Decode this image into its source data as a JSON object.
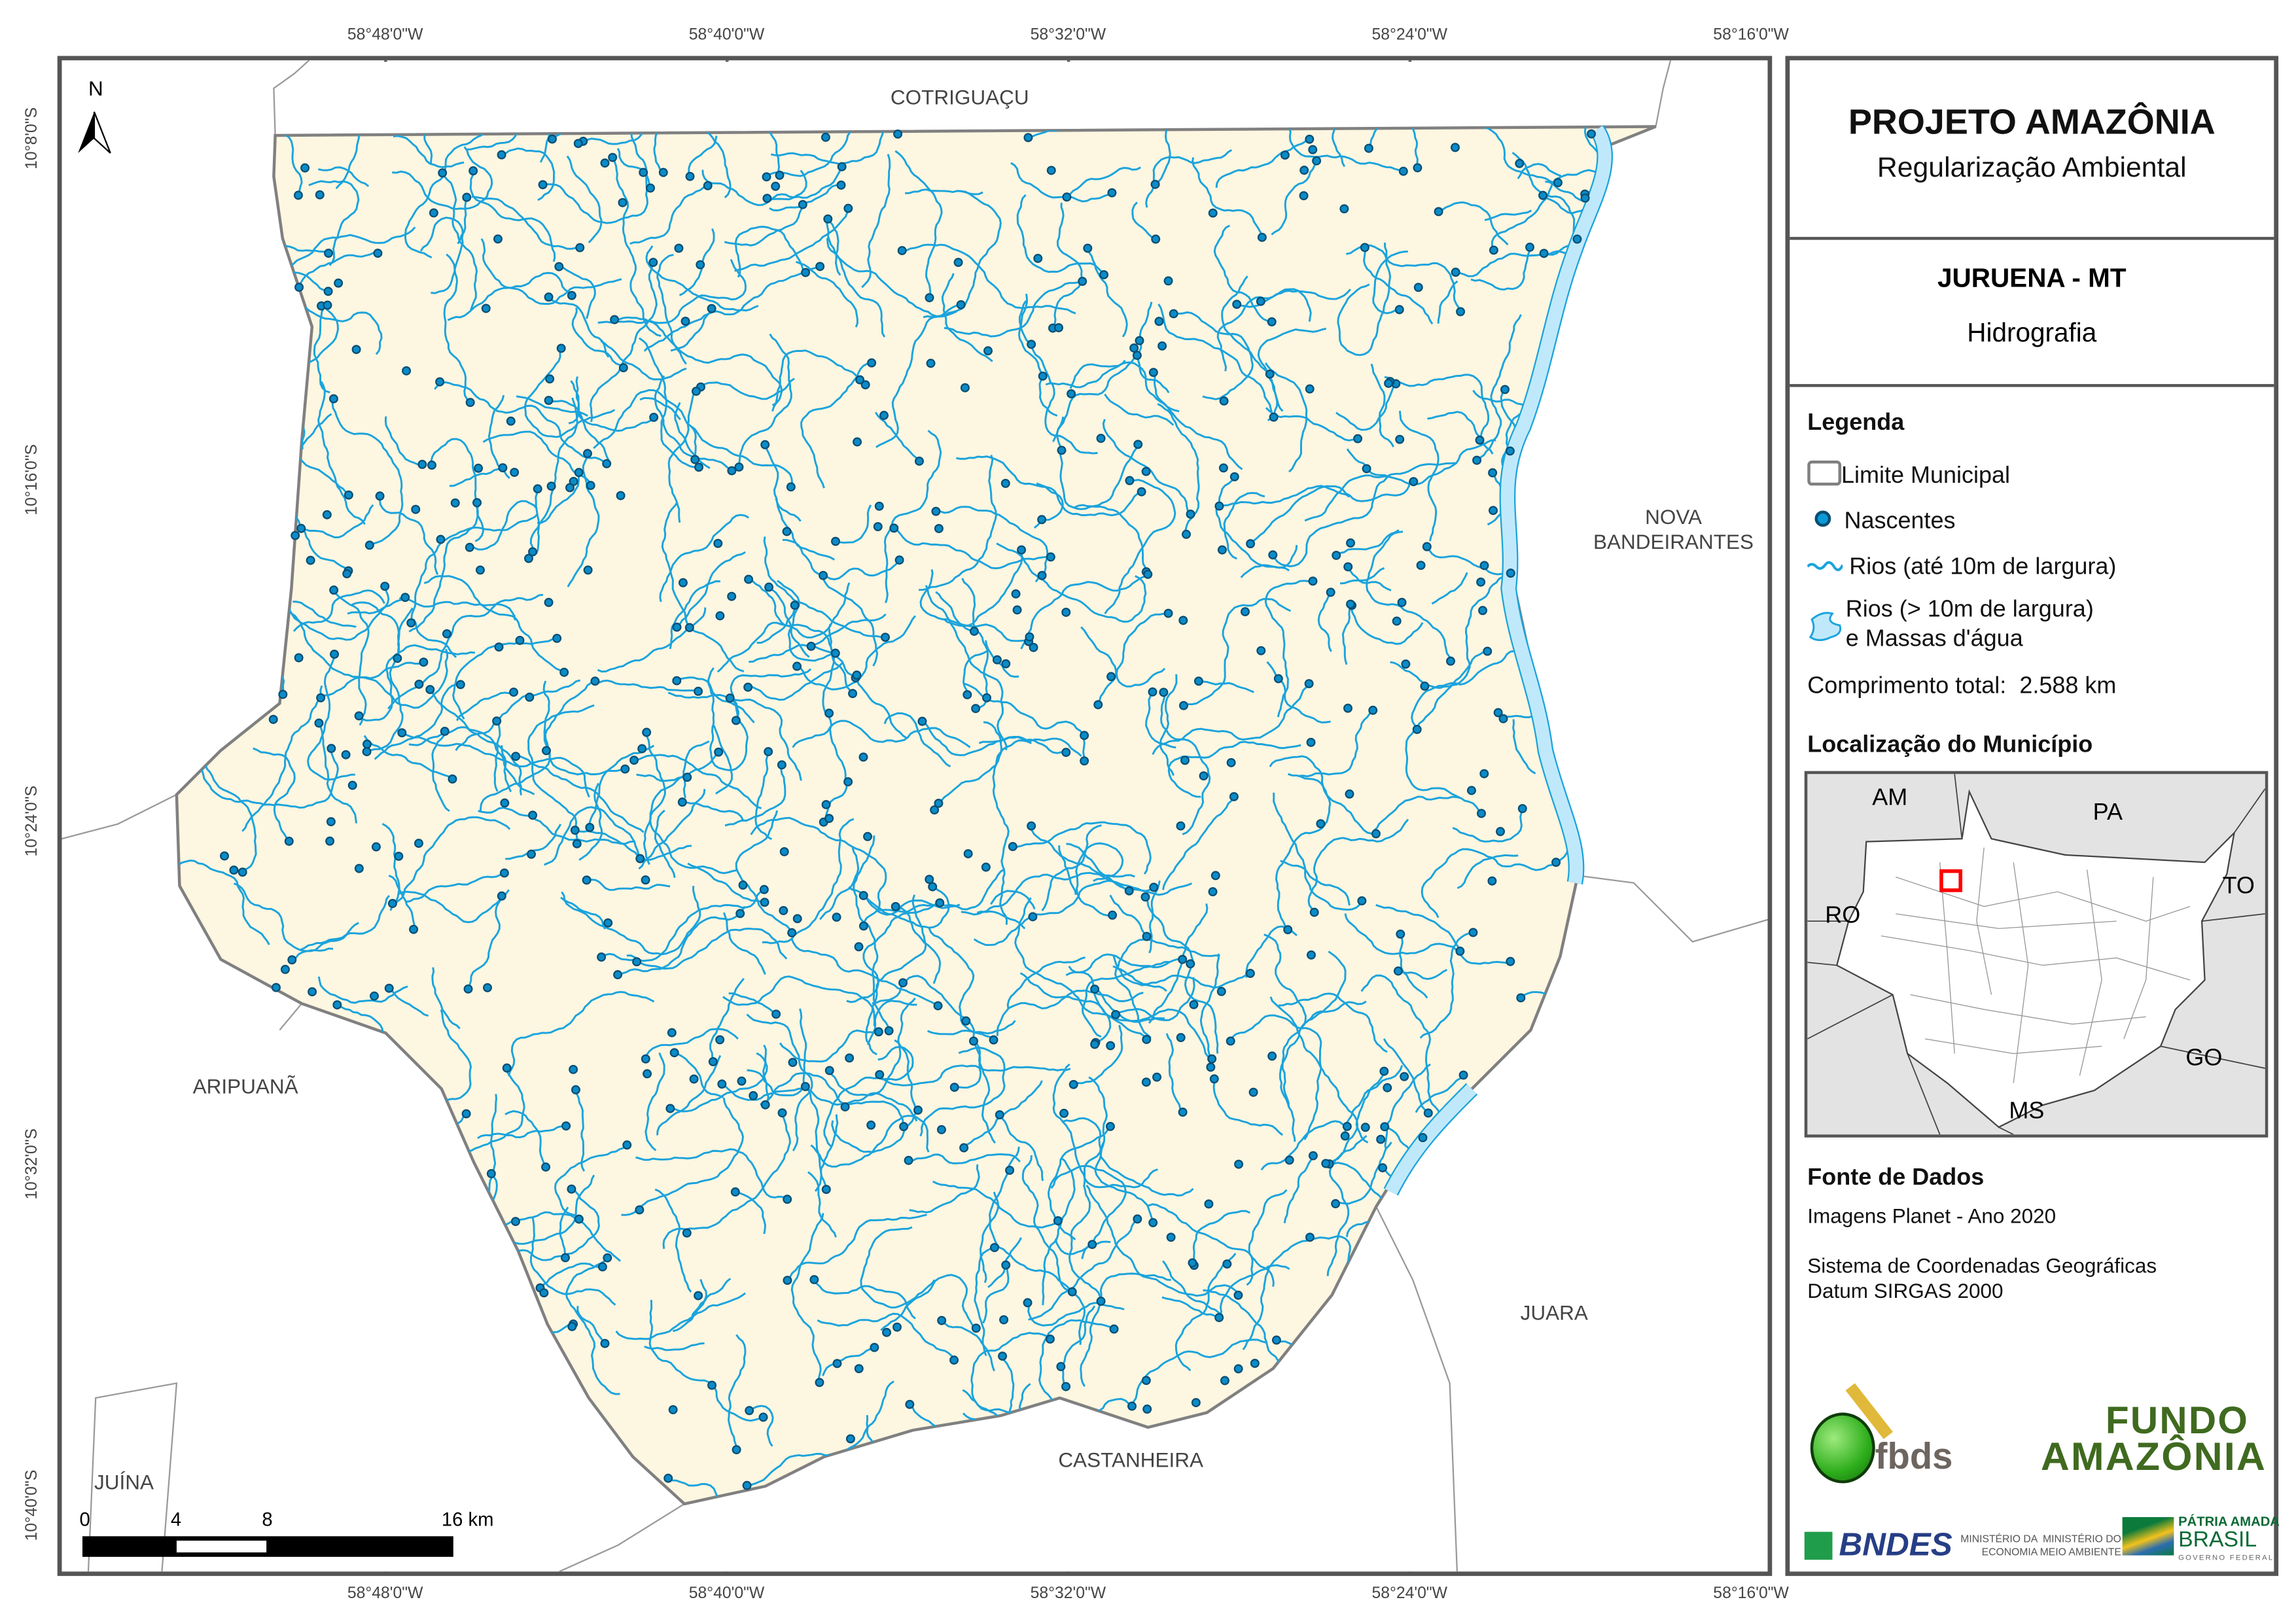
{
  "header": {
    "title": "PROJETO AMAZÔNIA",
    "subtitle": "Regularização Ambiental"
  },
  "municipality": {
    "name": "JURUENA - MT",
    "theme": "Hidrografia"
  },
  "legend": {
    "title": "Legenda",
    "items": [
      {
        "label": "Limite Municipal",
        "icon": "municipal-boundary-icon"
      },
      {
        "label": "Nascentes",
        "icon": "spring-point-icon"
      },
      {
        "label": "Rios (até 10m de largura)",
        "icon": "small-river-line-icon"
      },
      {
        "label": "Rios (> 10m de largura)",
        "label2": "e Massas d'água",
        "icon": "water-body-icon"
      }
    ],
    "total_length_label": "Comprimento total:",
    "total_length_value": "2.588 km"
  },
  "locator": {
    "title": "Localização do Município",
    "states": [
      "AM",
      "PA",
      "TO",
      "RO",
      "GO",
      "MS"
    ]
  },
  "sources": {
    "title": "Fonte de Dados",
    "line1": "Imagens Planet - Ano 2020",
    "line2": "Sistema de Coordenadas Geográficas",
    "line3": "Datum SIRGAS 2000"
  },
  "coords": {
    "lon": [
      "58°48'0\"W",
      "58°40'0\"W",
      "58°32'0\"W",
      "58°24'0\"W",
      "58°16'0\"W"
    ],
    "lat": [
      "10°8'0\"S",
      "10°16'0\"S",
      "10°24'0\"S",
      "10°32'0\"S",
      "10°40'0\"S"
    ]
  },
  "neighbors": {
    "cotriguacu": "COTRIGUAÇU",
    "nova1": "NOVA",
    "nova2": "BANDEIRANTES",
    "aripuana": "ARIPUANÃ",
    "juina": "JUÍNA",
    "castanheira": "CASTANHEIRA",
    "juara": "JUARA"
  },
  "north": "N",
  "scalebar": [
    "0",
    "4",
    "8",
    "16 km"
  ],
  "logos": {
    "fbds": "fbds",
    "fundo1": "FUNDO",
    "fundo2": "AMAZÔNIA",
    "bndes": "BNDES",
    "min1a": "MINISTÉRIO DA",
    "min1b": "ECONOMIA",
    "min2a": "MINISTÉRIO DO",
    "min2b": "MEIO AMBIENTE",
    "gov1": "PÁTRIA AMADA",
    "gov2": "BRASIL",
    "gov3": "GOVERNO FEDERAL"
  },
  "colors": {
    "land": "#fdf6e1",
    "river": "#1aa3dc",
    "spring": "#0a8cc8",
    "spring_outline": "#0a4d72",
    "water": "#bfe9fb",
    "frame": "#555555",
    "locator_bg": "#e3e3e3",
    "locator_marker": "#ff0000"
  }
}
